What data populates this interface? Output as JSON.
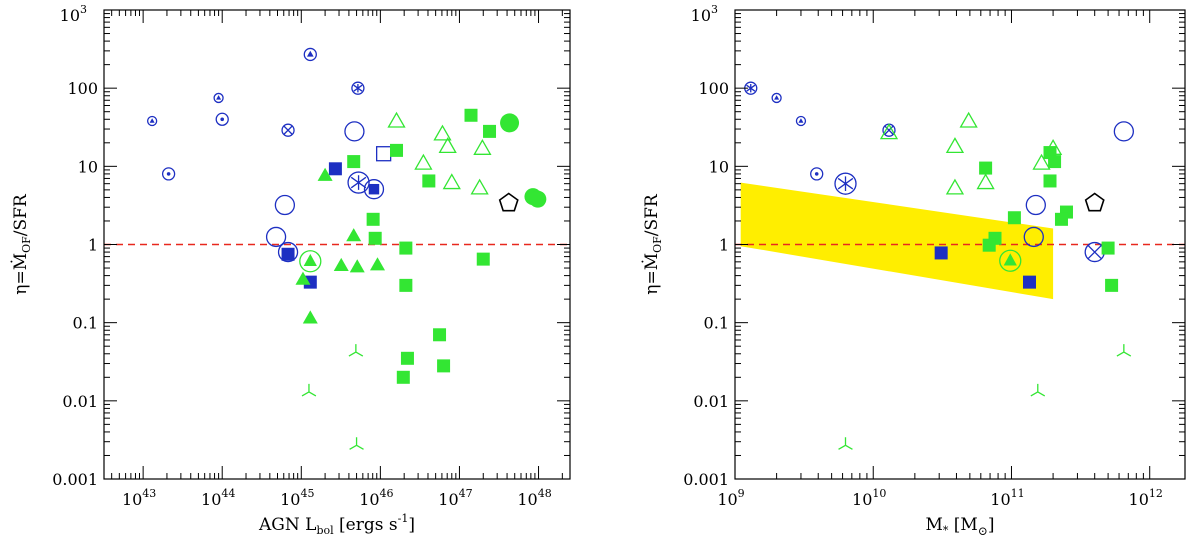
{
  "chart_data": [
    {
      "type": "scatter",
      "xlabel": "AGN L",
      "xlabel_sub": "bol",
      "xlabel_units": "[ergs s",
      "xlabel_sup": "-1",
      "xlabel_close": "]",
      "ylabel": "η=Ṁ",
      "ylabel_sub": "OF",
      "ylabel_end": "/SFR",
      "x_scale": "log",
      "y_scale": "log",
      "xlim": [
        3.2e+42,
        2.5e+48
      ],
      "ylim": [
        0.001,
        1000
      ],
      "x_ticks": [
        {
          "mant": "10",
          "exp": "43",
          "v": 1e+43
        },
        {
          "mant": "10",
          "exp": "44",
          "v": 1e+44
        },
        {
          "mant": "10",
          "exp": "45",
          "v": 1e+45
        },
        {
          "mant": "10",
          "exp": "46",
          "v": 1e+46
        },
        {
          "mant": "10",
          "exp": "47",
          "v": 1e+47
        },
        {
          "mant": "10",
          "exp": "48",
          "v": 1e+48
        }
      ],
      "y_ticks": [
        {
          "text": "0.001",
          "v": 0.001
        },
        {
          "text": "0.01",
          "v": 0.01
        },
        {
          "text": "0.1",
          "v": 0.1
        },
        {
          "text": "1",
          "v": 1
        },
        {
          "text": "10",
          "v": 10
        },
        {
          "text": "100",
          "v": 100
        },
        {
          "text": "10",
          "exp": "3",
          "v": 1000
        }
      ],
      "reference_line_y": 1,
      "reference_line_color": "#e8281e",
      "points": [
        {
          "x": 1.3e+43,
          "y": 38,
          "m": "tri-in-circle",
          "c": "#1d2fc2",
          "s": 9
        },
        {
          "x": 9e+43,
          "y": 75,
          "m": "tri-in-circle",
          "c": "#1d2fc2",
          "s": 9
        },
        {
          "x": 1.3e+45,
          "y": 270,
          "m": "tri-in-circle",
          "c": "#1d2fc2",
          "s": 12
        },
        {
          "x": 2.1e+43,
          "y": 8,
          "m": "dot-circle",
          "c": "#1d2fc2",
          "s": 12
        },
        {
          "x": 1e+44,
          "y": 40,
          "m": "dot-circle",
          "c": "#1d2fc2",
          "s": 12
        },
        {
          "x": 6.8e+44,
          "y": 29,
          "m": "x-circle",
          "c": "#1d2fc2",
          "s": 12
        },
        {
          "x": 5.2e+45,
          "y": 100,
          "m": "star-circle",
          "c": "#1d2fc2",
          "s": 12
        },
        {
          "x": 6.2e+44,
          "y": 3.2,
          "m": "circle",
          "c": "#1d2fc2",
          "s": 19
        },
        {
          "x": 4.8e+44,
          "y": 1.25,
          "m": "circle",
          "c": "#1d2fc2",
          "s": 19
        },
        {
          "x": 6.8e+44,
          "y": 0.8,
          "m": "circle",
          "c": "#1d2fc2",
          "s": 19
        },
        {
          "x": 4.7e+45,
          "y": 28,
          "m": "circle",
          "c": "#1d2fc2",
          "s": 19
        },
        {
          "x": 5.3e+45,
          "y": 6.2,
          "m": "star-circle",
          "c": "#1d2fc2",
          "s": 21
        },
        {
          "x": 8.3e+45,
          "y": 5.1,
          "m": "square-in-circle",
          "c": "#1d2fc2",
          "s": 19
        },
        {
          "x": 1.1e+46,
          "y": 14.5,
          "m": "open-square",
          "c": "#1d2fc2",
          "s": 14
        },
        {
          "x": 2.7e+45,
          "y": 9.3,
          "m": "square",
          "c": "#1d2fc2",
          "s": 13
        },
        {
          "x": 6.8e+44,
          "y": 0.75,
          "m": "square",
          "c": "#1d2fc2",
          "s": 13
        },
        {
          "x": 1.3e+45,
          "y": 0.33,
          "m": "square",
          "c": "#1d2fc2",
          "s": 13
        },
        {
          "x": 4.2e+47,
          "y": 3.4,
          "m": "pentagon",
          "c": "#000000",
          "s": 19
        },
        {
          "x": 4.6e+45,
          "y": 11.5,
          "m": "square",
          "c": "#33e633",
          "s": 13
        },
        {
          "x": 1.6e+46,
          "y": 16,
          "m": "square",
          "c": "#33e633",
          "s": 13
        },
        {
          "x": 1.4e+47,
          "y": 45,
          "m": "square",
          "c": "#33e633",
          "s": 13
        },
        {
          "x": 2.4e+47,
          "y": 28,
          "m": "square",
          "c": "#33e633",
          "s": 13
        },
        {
          "x": 4.1e+46,
          "y": 6.5,
          "m": "square",
          "c": "#33e633",
          "s": 13
        },
        {
          "x": 8.1e+45,
          "y": 2.1,
          "m": "square",
          "c": "#33e633",
          "s": 13
        },
        {
          "x": 8.6e+45,
          "y": 1.2,
          "m": "square",
          "c": "#33e633",
          "s": 13
        },
        {
          "x": 2.1e+46,
          "y": 0.9,
          "m": "square",
          "c": "#33e633",
          "s": 13
        },
        {
          "x": 2.1e+46,
          "y": 0.3,
          "m": "square",
          "c": "#33e633",
          "s": 13
        },
        {
          "x": 5.6e+46,
          "y": 0.07,
          "m": "square",
          "c": "#33e633",
          "s": 13
        },
        {
          "x": 2.2e+46,
          "y": 0.035,
          "m": "square",
          "c": "#33e633",
          "s": 13
        },
        {
          "x": 6.3e+46,
          "y": 0.028,
          "m": "square",
          "c": "#33e633",
          "s": 13
        },
        {
          "x": 1.95e+46,
          "y": 0.02,
          "m": "square",
          "c": "#33e633",
          "s": 13
        },
        {
          "x": 2e+47,
          "y": 0.65,
          "m": "square",
          "c": "#33e633",
          "s": 13
        },
        {
          "x": 4.3e+47,
          "y": 36,
          "m": "circle-filled",
          "c": "#33e633",
          "s": 19
        },
        {
          "x": 8.5e+47,
          "y": 4.1,
          "m": "circle-filled",
          "c": "#33e633",
          "s": 17
        },
        {
          "x": 9.8e+47,
          "y": 3.8,
          "m": "circle-filled",
          "c": "#33e633",
          "s": 17
        },
        {
          "x": 2e+45,
          "y": 7.7,
          "m": "tri-filled",
          "c": "#33e633",
          "s": 15
        },
        {
          "x": 4.6e+45,
          "y": 1.3,
          "m": "tri-filled",
          "c": "#33e633",
          "s": 15
        },
        {
          "x": 3.2e+45,
          "y": 0.54,
          "m": "tri-filled",
          "c": "#33e633",
          "s": 15
        },
        {
          "x": 5.1e+45,
          "y": 0.52,
          "m": "tri-filled",
          "c": "#33e633",
          "s": 15
        },
        {
          "x": 9.2e+45,
          "y": 0.55,
          "m": "tri-filled",
          "c": "#33e633",
          "s": 15
        },
        {
          "x": 1.3e+45,
          "y": 0.115,
          "m": "tri-filled",
          "c": "#33e633",
          "s": 15
        },
        {
          "x": 1.05e+45,
          "y": 0.36,
          "m": "tri-filled",
          "c": "#33e633",
          "s": 15
        },
        {
          "x": 1.3e+45,
          "y": 0.61,
          "m": "tri-in-circle-filled",
          "c": "#33e633",
          "s": 21
        },
        {
          "x": 1.6e+46,
          "y": 38,
          "m": "tri-open",
          "c": "#33e633",
          "s": 16
        },
        {
          "x": 6.1e+46,
          "y": 26,
          "m": "tri-open",
          "c": "#33e633",
          "s": 16
        },
        {
          "x": 7.1e+46,
          "y": 18,
          "m": "tri-open",
          "c": "#33e633",
          "s": 16
        },
        {
          "x": 1.95e+47,
          "y": 17,
          "m": "tri-open",
          "c": "#33e633",
          "s": 16
        },
        {
          "x": 3.5e+46,
          "y": 11,
          "m": "tri-open",
          "c": "#33e633",
          "s": 16
        },
        {
          "x": 8e+46,
          "y": 6.2,
          "m": "tri-open",
          "c": "#33e633",
          "s": 16
        },
        {
          "x": 1.8e+47,
          "y": 5.3,
          "m": "tri-open",
          "c": "#33e633",
          "s": 16
        },
        {
          "x": 1.25e+45,
          "y": 0.013,
          "m": "tripod",
          "c": "#33e633",
          "s": 16
        },
        {
          "x": 4.9e+45,
          "y": 0.042,
          "m": "tripod",
          "c": "#33e633",
          "s": 16
        },
        {
          "x": 5e+45,
          "y": 0.0027,
          "m": "tripod",
          "c": "#33e633",
          "s": 16
        }
      ]
    },
    {
      "type": "scatter",
      "xlabel": "M",
      "xlabel_sub": "*",
      "xlabel_units": "[M",
      "xlabel_sub2": "⊙",
      "xlabel_close": "]",
      "ylabel": "η=Ṁ",
      "ylabel_sub": "OF",
      "ylabel_end": "/SFR",
      "x_scale": "log",
      "y_scale": "log",
      "xlim": [
        1000000000.0,
        1800000000000.0
      ],
      "ylim": [
        0.001,
        1000
      ],
      "x_ticks": [
        {
          "mant": "10",
          "exp": "9",
          "v": 1000000000.0
        },
        {
          "mant": "10",
          "exp": "10",
          "v": 10000000000.0
        },
        {
          "mant": "10",
          "exp": "11",
          "v": 100000000000.0
        },
        {
          "mant": "10",
          "exp": "12",
          "v": 1000000000000.0
        }
      ],
      "y_ticks": [
        {
          "text": "0.001",
          "v": 0.001
        },
        {
          "text": "0.01",
          "v": 0.01
        },
        {
          "text": "0.1",
          "v": 0.1
        },
        {
          "text": "1",
          "v": 1
        },
        {
          "text": "10",
          "v": 10
        },
        {
          "text": "100",
          "v": 100
        },
        {
          "text": "10",
          "exp": "3",
          "v": 1000
        }
      ],
      "reference_line_y": 1,
      "reference_line_color": "#e8281e",
      "shaded_region": {
        "color": "#ffee00",
        "polygon": [
          [
            1100000000.0,
            6.2
          ],
          [
            200000000000.0,
            1.6
          ],
          [
            200000000000.0,
            0.2
          ],
          [
            1100000000.0,
            0.95
          ]
        ]
      },
      "points": [
        {
          "x": 1300000000.0,
          "y": 100,
          "m": "star-circle",
          "c": "#1d2fc2",
          "s": 12
        },
        {
          "x": 2000000000.0,
          "y": 75,
          "m": "tri-in-circle",
          "c": "#1d2fc2",
          "s": 9
        },
        {
          "x": 3000000000.0,
          "y": 38,
          "m": "tri-in-circle",
          "c": "#1d2fc2",
          "s": 9
        },
        {
          "x": 3900000000.0,
          "y": 8,
          "m": "dot-circle",
          "c": "#1d2fc2",
          "s": 12
        },
        {
          "x": 6300000000.0,
          "y": 6,
          "m": "star-circle",
          "c": "#1d2fc2",
          "s": 21
        },
        {
          "x": 13000000000.0,
          "y": 29,
          "m": "x-circle",
          "c": "#1d2fc2",
          "s": 12
        },
        {
          "x": 150000000000.0,
          "y": 3.2,
          "m": "circle",
          "c": "#1d2fc2",
          "s": 19
        },
        {
          "x": 145000000000.0,
          "y": 1.25,
          "m": "circle",
          "c": "#1d2fc2",
          "s": 19
        },
        {
          "x": 650000000000.0,
          "y": 28,
          "m": "circle",
          "c": "#1d2fc2",
          "s": 19
        },
        {
          "x": 400000000000.0,
          "y": 0.8,
          "m": "x-circle",
          "c": "#1d2fc2",
          "s": 19
        },
        {
          "x": 31000000000.0,
          "y": 0.78,
          "m": "square",
          "c": "#1d2fc2",
          "s": 13
        },
        {
          "x": 135000000000.0,
          "y": 0.33,
          "m": "square",
          "c": "#1d2fc2",
          "s": 13
        },
        {
          "x": 400000000000.0,
          "y": 3.4,
          "m": "pentagon",
          "c": "#000000",
          "s": 19
        },
        {
          "x": 13000000000.0,
          "y": 27,
          "m": "tri-open",
          "c": "#33e633",
          "s": 16
        },
        {
          "x": 49000000000.0,
          "y": 38,
          "m": "tri-open",
          "c": "#33e633",
          "s": 16
        },
        {
          "x": 39000000000.0,
          "y": 18,
          "m": "tri-open",
          "c": "#33e633",
          "s": 16
        },
        {
          "x": 165000000000.0,
          "y": 11,
          "m": "tri-open",
          "c": "#33e633",
          "s": 16
        },
        {
          "x": 200000000000.0,
          "y": 17,
          "m": "tri-open",
          "c": "#33e633",
          "s": 16
        },
        {
          "x": 39000000000.0,
          "y": 5.3,
          "m": "tri-open",
          "c": "#33e633",
          "s": 16
        },
        {
          "x": 65000000000.0,
          "y": 6.2,
          "m": "tri-open",
          "c": "#33e633",
          "s": 16
        },
        {
          "x": 65000000000.0,
          "y": 9.5,
          "m": "square",
          "c": "#33e633",
          "s": 13
        },
        {
          "x": 190000000000.0,
          "y": 15,
          "m": "square",
          "c": "#33e633",
          "s": 13
        },
        {
          "x": 205000000000.0,
          "y": 11.5,
          "m": "square",
          "c": "#33e633",
          "s": 13
        },
        {
          "x": 190000000000.0,
          "y": 6.5,
          "m": "square",
          "c": "#33e633",
          "s": 13
        },
        {
          "x": 105000000000.0,
          "y": 2.2,
          "m": "square",
          "c": "#33e633",
          "s": 13
        },
        {
          "x": 250000000000.0,
          "y": 2.6,
          "m": "square",
          "c": "#33e633",
          "s": 13
        },
        {
          "x": 230000000000.0,
          "y": 2.1,
          "m": "square",
          "c": "#33e633",
          "s": 13
        },
        {
          "x": 76000000000.0,
          "y": 1.2,
          "m": "square",
          "c": "#33e633",
          "s": 13
        },
        {
          "x": 69000000000.0,
          "y": 0.98,
          "m": "square",
          "c": "#33e633",
          "s": 13
        },
        {
          "x": 500000000000.0,
          "y": 0.9,
          "m": "square",
          "c": "#33e633",
          "s": 13
        },
        {
          "x": 530000000000.0,
          "y": 0.3,
          "m": "square",
          "c": "#33e633",
          "s": 13
        },
        {
          "x": 98000000000.0,
          "y": 0.62,
          "m": "tri-in-circle-filled",
          "c": "#33e633",
          "s": 21
        },
        {
          "x": 6300000000.0,
          "y": 0.0027,
          "m": "tripod",
          "c": "#33e633",
          "s": 16
        },
        {
          "x": 155000000000.0,
          "y": 0.013,
          "m": "tripod",
          "c": "#33e633",
          "s": 16
        },
        {
          "x": 650000000000.0,
          "y": 0.042,
          "m": "tripod",
          "c": "#33e633",
          "s": 16
        }
      ]
    }
  ]
}
